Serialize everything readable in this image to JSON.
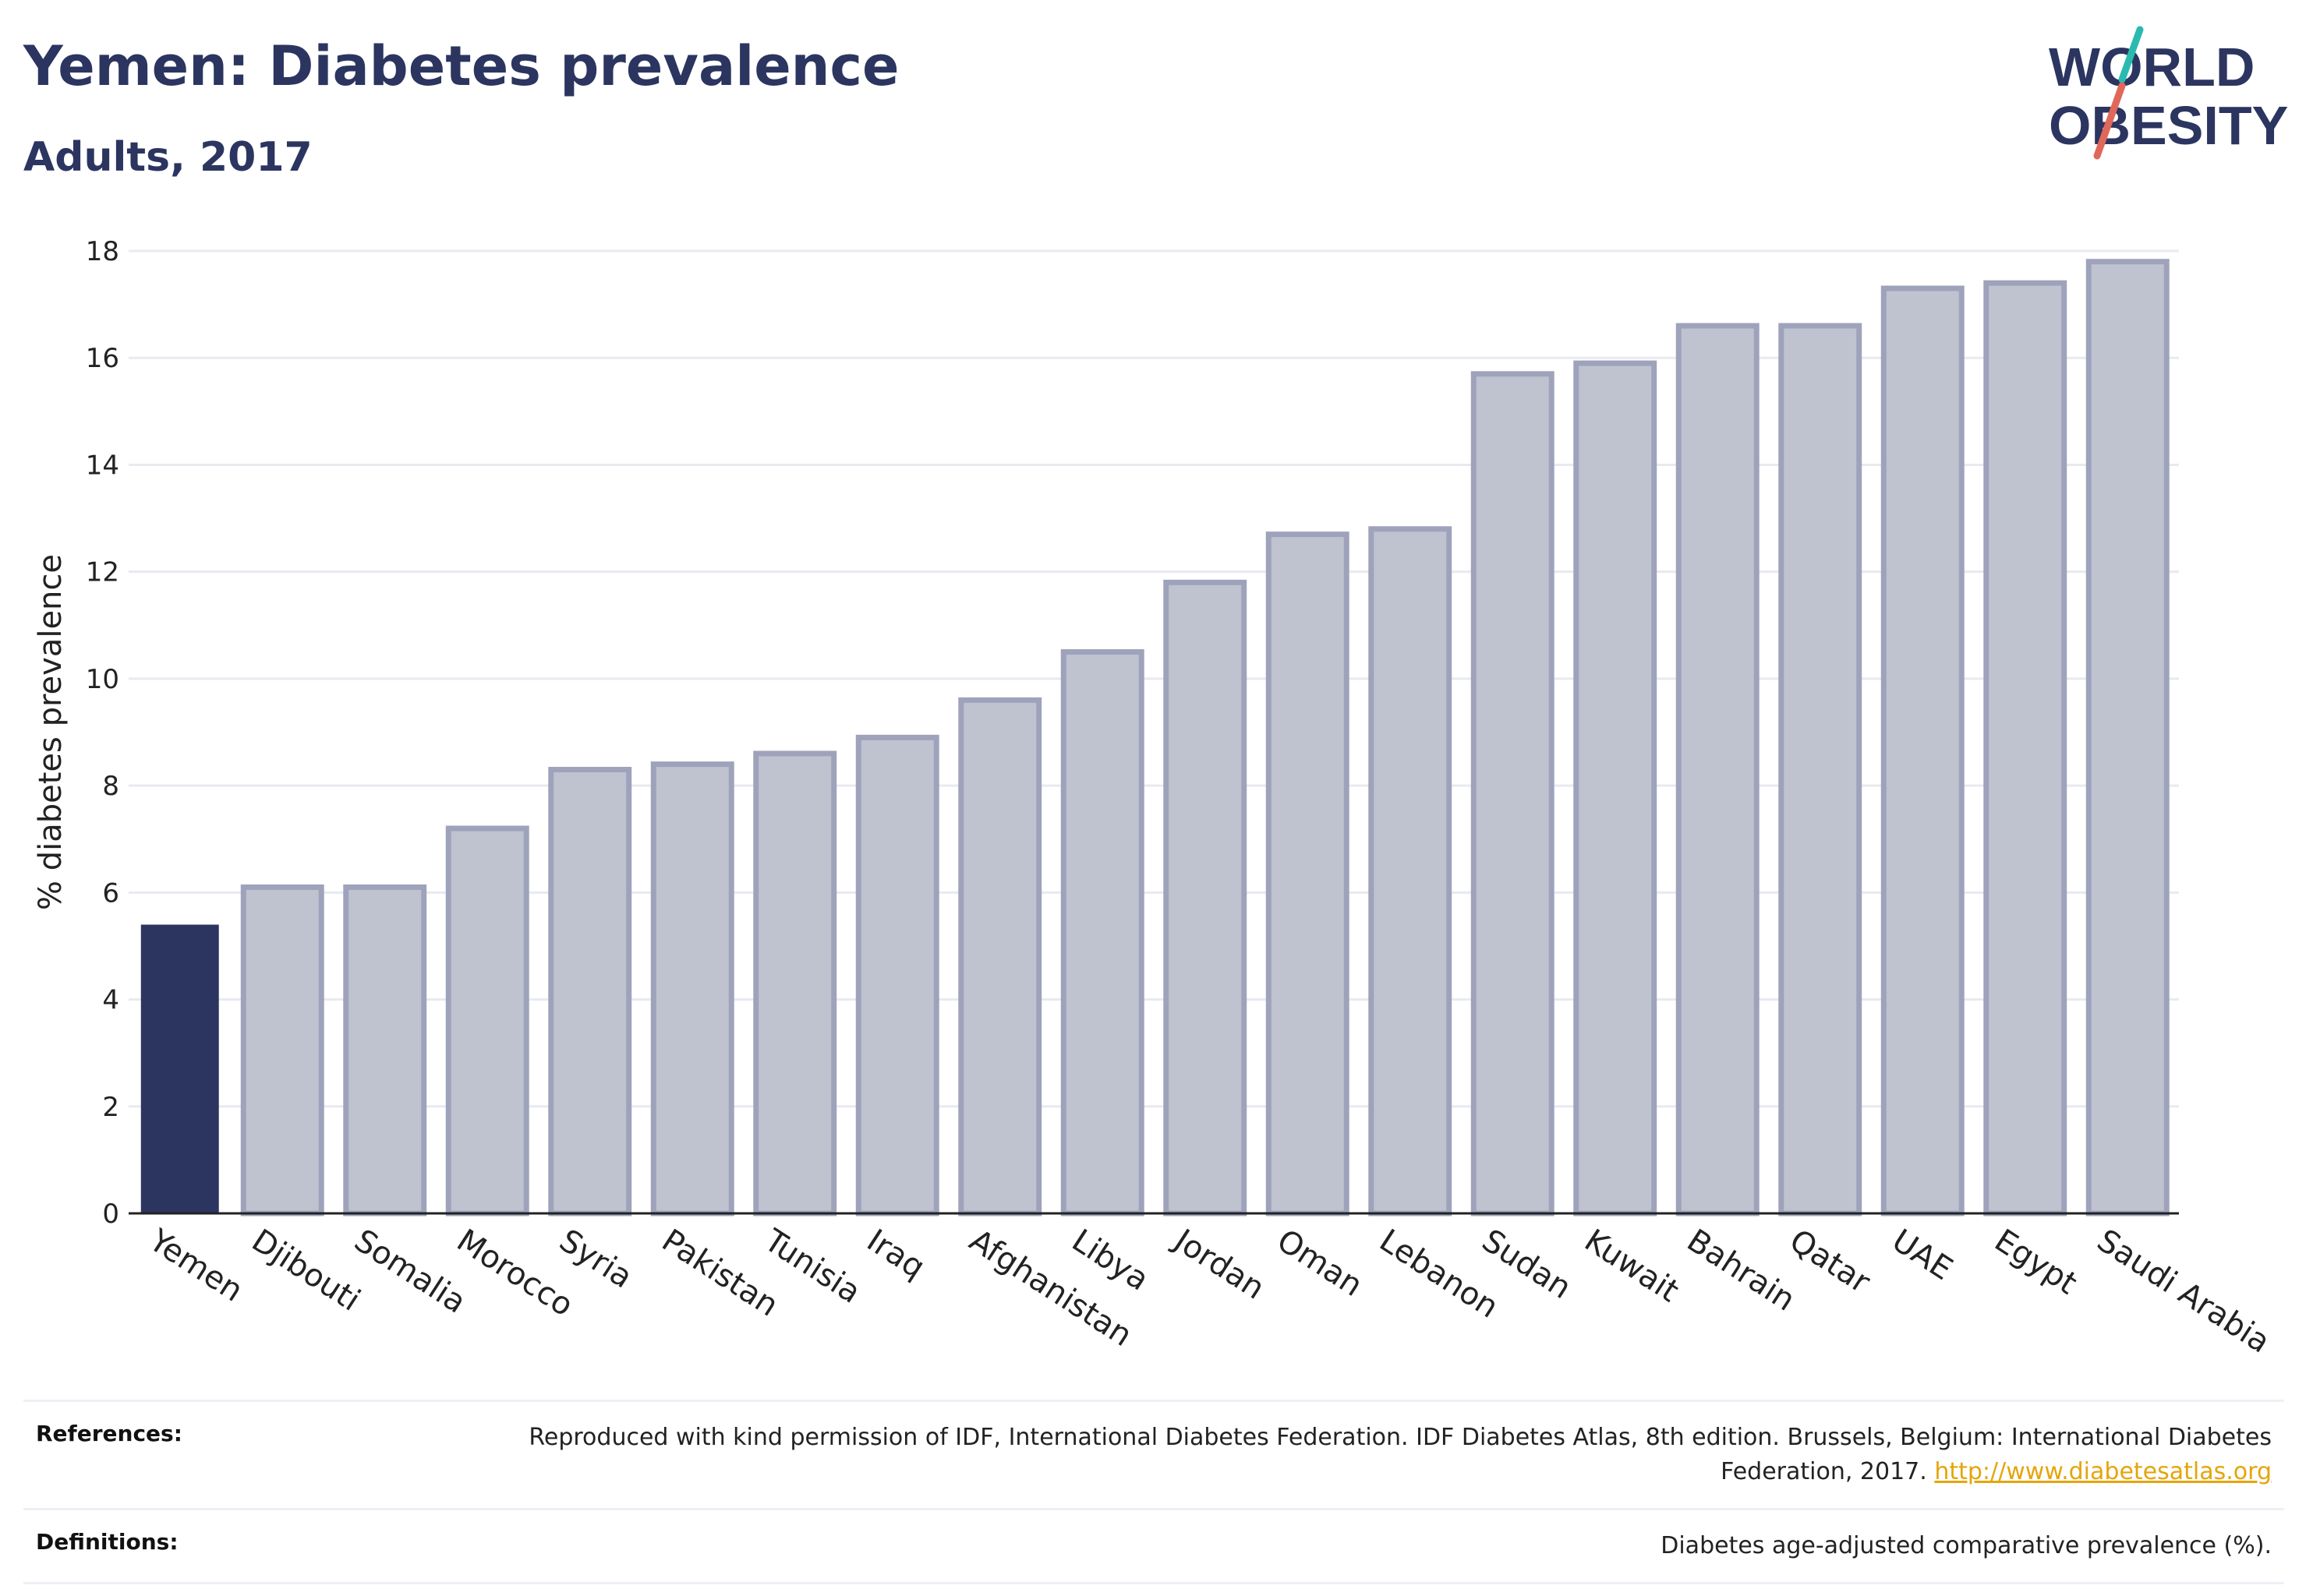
{
  "header": {
    "title": "Yemen: Diabetes prevalence",
    "subtitle": "Adults, 2017"
  },
  "logo": {
    "line1": "WORLD",
    "line2": "OBESITY"
  },
  "colors": {
    "highlight": "#2b3560",
    "bar_fill": "#bfc3d0",
    "bar_stroke": "#9ea3bb",
    "grid": "#e8eaf0",
    "accent_teal": "#2bbab0",
    "accent_red": "#e0685a"
  },
  "chart_data": {
    "type": "bar",
    "ylabel": "% diabetes prevalence",
    "ylim": [
      0,
      18
    ],
    "yticks": [
      0,
      2,
      4,
      6,
      8,
      10,
      12,
      14,
      16,
      18
    ],
    "grid": true,
    "highlight_category": "Yemen",
    "categories": [
      "Yemen",
      "Djibouti",
      "Somalia",
      "Morocco",
      "Syria",
      "Pakistan",
      "Tunisia",
      "Iraq",
      "Afghanistan",
      "Libya",
      "Jordan",
      "Oman",
      "Lebanon",
      "Sudan",
      "Kuwait",
      "Bahrain",
      "Qatar",
      "UAE",
      "Egypt",
      "Saudi Arabia"
    ],
    "values": [
      5.4,
      6.1,
      6.1,
      7.2,
      8.3,
      8.4,
      8.6,
      8.9,
      9.6,
      10.5,
      11.8,
      12.7,
      12.8,
      15.7,
      15.9,
      16.6,
      16.6,
      17.3,
      17.4,
      17.8
    ]
  },
  "footer": {
    "references_label": "References:",
    "references_text": "Reproduced with kind permission of IDF, International Diabetes Federation. IDF Diabetes Atlas, 8th edition. Brussels, Belgium: International Diabetes Federation, 2017. ",
    "references_link": "http://www.diabetesatlas.org",
    "definitions_label": "Definitions:",
    "definitions_text": "Diabetes age-adjusted comparative prevalence (%)."
  }
}
